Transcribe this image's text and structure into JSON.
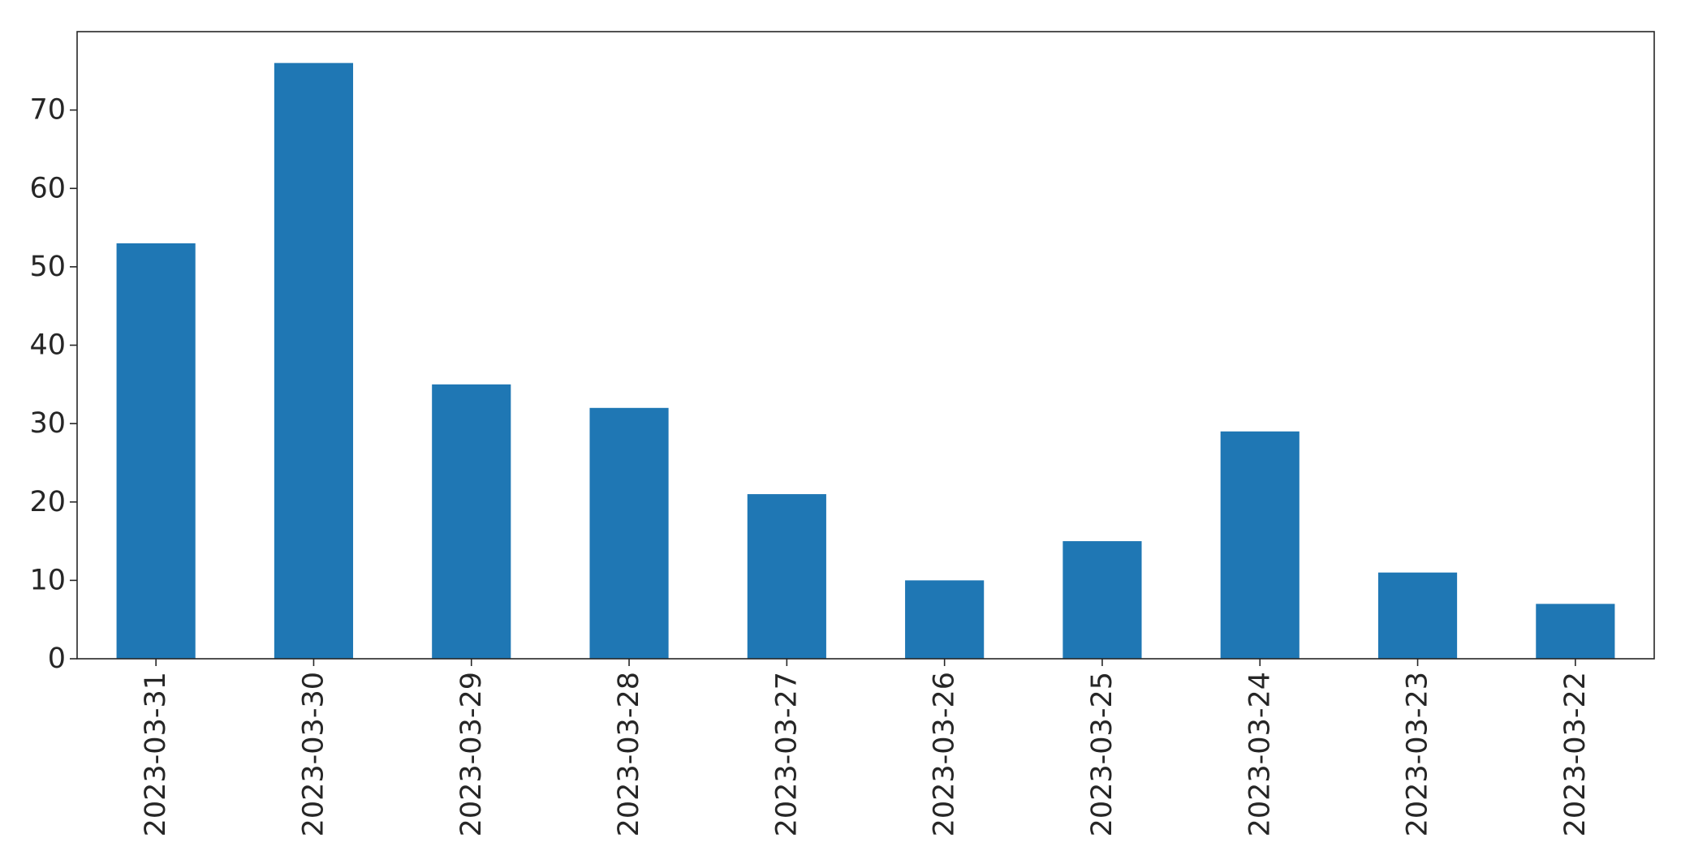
{
  "chart_data": {
    "type": "bar",
    "title": "",
    "xlabel": "",
    "ylabel": "",
    "categories": [
      "2023-03-31",
      "2023-03-30",
      "2023-03-29",
      "2023-03-28",
      "2023-03-27",
      "2023-03-26",
      "2023-03-25",
      "2023-03-24",
      "2023-03-23",
      "2023-03-22"
    ],
    "values": [
      53,
      76,
      35,
      32,
      21,
      10,
      15,
      29,
      11,
      7
    ],
    "ylim": [
      0,
      80
    ],
    "yticks": [
      0,
      10,
      20,
      30,
      40,
      50,
      60,
      70
    ],
    "grid": false,
    "legend": "none",
    "bar_color": "#1f77b4",
    "axis_color": "#262626"
  }
}
